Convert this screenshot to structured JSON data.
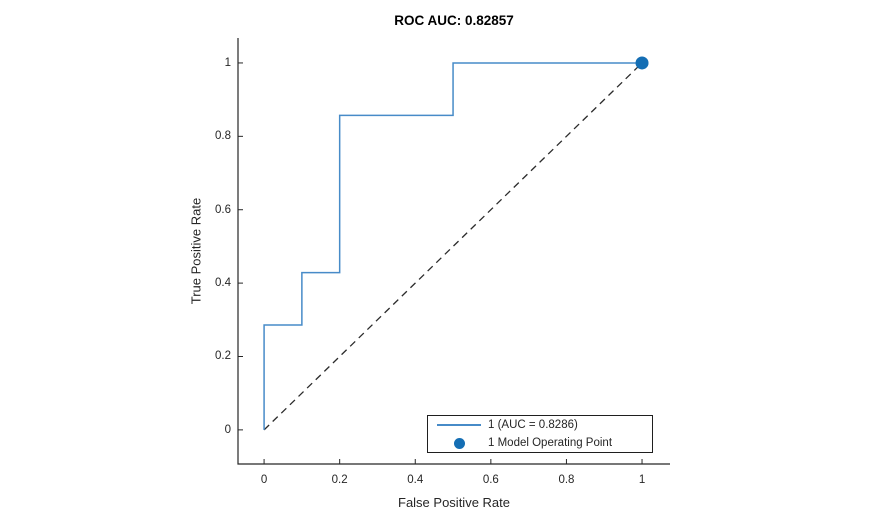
{
  "figure": {
    "background": "#ffffff"
  },
  "chart_data": {
    "type": "line",
    "subtype": "roc-curve",
    "title": "ROC AUC: 0.82857",
    "xlabel": "False Positive Rate",
    "ylabel": "True Positive Rate",
    "xlim": [
      -0.069,
      1.074
    ],
    "ylim": [
      -0.093,
      1.068
    ],
    "xticks": [
      0,
      0.2,
      0.4,
      0.6,
      0.8,
      1
    ],
    "yticks": [
      0,
      0.2,
      0.4,
      0.6,
      0.8,
      1
    ],
    "xtick_labels": [
      "0",
      "0.2",
      "0.4",
      "0.6",
      "0.8",
      "1"
    ],
    "ytick_labels": [
      "0",
      "0.2",
      "0.4",
      "0.6",
      "0.8",
      "1"
    ],
    "grid": false,
    "axis_color": "#262626",
    "text_color": "#262626",
    "title_color": "#000000",
    "series": [
      {
        "name": "1 (AUC = 0.8286)",
        "type": "step-line",
        "color": "#478bc8",
        "points": [
          [
            0,
            0
          ],
          [
            0,
            0.2857
          ],
          [
            0.1,
            0.2857
          ],
          [
            0.1,
            0.4286
          ],
          [
            0.2,
            0.4286
          ],
          [
            0.2,
            0.8571
          ],
          [
            0.5,
            0.8571
          ],
          [
            0.5,
            1
          ],
          [
            1,
            1
          ]
        ]
      },
      {
        "name": "chance-diagonal",
        "type": "dashed-line",
        "color": "#2b2b2b",
        "points": [
          [
            0,
            0
          ],
          [
            1,
            1
          ]
        ]
      },
      {
        "name": "1 Model Operating Point",
        "type": "marker",
        "color": "#146eb4",
        "points": [
          [
            1,
            1
          ]
        ]
      }
    ],
    "legend": {
      "position": "southeast",
      "border_color": "#1f1f1f",
      "entries": [
        {
          "swatch": "line",
          "label": "1 (AUC = 0.8286)"
        },
        {
          "swatch": "dot",
          "label": "1 Model Operating Point"
        }
      ]
    }
  }
}
